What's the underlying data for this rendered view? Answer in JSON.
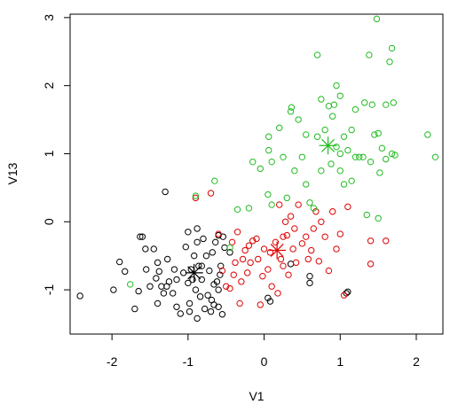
{
  "chart_data": {
    "type": "scatter",
    "title": "",
    "xlabel": "V1",
    "ylabel": "V13",
    "xlim": [
      -2.55,
      2.35
    ],
    "ylim": [
      -1.65,
      3.05
    ],
    "x_ticks": [
      -2,
      -1,
      0,
      1,
      2
    ],
    "y_ticks": [
      -1,
      0,
      1,
      2,
      3
    ],
    "x_tick_labels": [
      "-2",
      "-1",
      "0",
      "1",
      "2"
    ],
    "y_tick_labels": [
      "-1",
      "0",
      "1",
      "2",
      "3"
    ],
    "grid": false,
    "legend": "none",
    "marker": "open-circle",
    "series": [
      {
        "color": "#000000",
        "points": [
          [
            -2.42,
            -1.09
          ],
          [
            -1.98,
            -1.0
          ],
          [
            -1.9,
            -0.59
          ],
          [
            -1.83,
            -0.73
          ],
          [
            -1.7,
            -1.28
          ],
          [
            -1.65,
            -1.02
          ],
          [
            -1.63,
            -0.22
          ],
          [
            -1.6,
            -0.22
          ],
          [
            -1.56,
            -0.4
          ],
          [
            -1.55,
            -0.7
          ],
          [
            -1.5,
            -0.95
          ],
          [
            -1.45,
            -0.4
          ],
          [
            -1.42,
            -0.83
          ],
          [
            -1.4,
            -1.2
          ],
          [
            -1.4,
            -0.6
          ],
          [
            -1.38,
            -0.73
          ],
          [
            -1.35,
            -0.95
          ],
          [
            -1.32,
            -1.05
          ],
          [
            -1.27,
            -0.55
          ],
          [
            -1.25,
            -0.88
          ],
          [
            -1.2,
            -1.05
          ],
          [
            -1.18,
            -0.7
          ],
          [
            -1.15,
            -1.25
          ],
          [
            -1.1,
            -1.35
          ],
          [
            -1.06,
            -0.75
          ],
          [
            -1.03,
            -0.37
          ],
          [
            -1.0,
            -0.9
          ],
          [
            -0.98,
            -1.2
          ],
          [
            -0.96,
            -0.7
          ],
          [
            -0.94,
            -0.85
          ],
          [
            -0.92,
            -0.5
          ],
          [
            -0.9,
            -1.0
          ],
          [
            -0.88,
            -1.42
          ],
          [
            -0.86,
            -0.65
          ],
          [
            -0.84,
            -1.1
          ],
          [
            -0.82,
            -0.85
          ],
          [
            -0.8,
            -0.25
          ],
          [
            -0.78,
            -1.28
          ],
          [
            -0.76,
            -0.5
          ],
          [
            -0.74,
            -1.08
          ],
          [
            -0.72,
            -0.72
          ],
          [
            -0.7,
            -1.32
          ],
          [
            -0.69,
            -1.15
          ],
          [
            -0.68,
            -0.45
          ],
          [
            -0.66,
            -1.22
          ],
          [
            -0.64,
            -0.3
          ],
          [
            -0.62,
            -0.88
          ],
          [
            -0.6,
            -1.0
          ],
          [
            -0.58,
            -0.78
          ],
          [
            -0.57,
            -0.65
          ],
          [
            -0.54,
            -0.22
          ],
          [
            -0.52,
            -0.38
          ],
          [
            -0.55,
            -1.36
          ],
          [
            -1.3,
            0.44
          ],
          [
            -0.88,
            -0.1
          ],
          [
            -0.6,
            -0.2
          ],
          [
            -0.45,
            -0.45
          ],
          [
            -0.6,
            -1.25
          ],
          [
            -0.88,
            -0.3
          ],
          [
            -1.0,
            -0.15
          ],
          [
            -0.82,
            -0.65
          ],
          [
            -1.28,
            -0.95
          ],
          [
            -0.98,
            -1.32
          ],
          [
            -1.15,
            -0.85
          ],
          [
            -0.66,
            -0.92
          ],
          [
            0.05,
            -1.12
          ],
          [
            0.08,
            -1.17
          ],
          [
            0.6,
            -0.9
          ],
          [
            0.6,
            -0.8
          ],
          [
            1.08,
            -1.05
          ],
          [
            1.1,
            -1.03
          ],
          [
            0.35,
            -0.62
          ]
        ]
      },
      {
        "color": "#DF0000",
        "points": [
          [
            -0.9,
            0.35
          ],
          [
            -0.7,
            0.42
          ],
          [
            -0.6,
            -0.18
          ],
          [
            -0.55,
            -0.72
          ],
          [
            -0.5,
            -0.95
          ],
          [
            -0.45,
            -0.98
          ],
          [
            -0.42,
            -0.3
          ],
          [
            -0.4,
            -0.78
          ],
          [
            -0.38,
            -0.6
          ],
          [
            -0.35,
            -0.15
          ],
          [
            -0.32,
            -1.2
          ],
          [
            -0.3,
            -0.88
          ],
          [
            -0.28,
            -0.55
          ],
          [
            -0.25,
            -0.42
          ],
          [
            -0.22,
            -0.75
          ],
          [
            -0.2,
            -0.35
          ],
          [
            -0.18,
            -0.6
          ],
          [
            -0.15,
            -0.28
          ],
          [
            -0.1,
            -0.25
          ],
          [
            -0.08,
            -0.55
          ],
          [
            -0.05,
            -1.22
          ],
          [
            -0.02,
            -0.8
          ],
          [
            0.0,
            -0.4
          ],
          [
            0.05,
            -0.7
          ],
          [
            0.1,
            -0.95
          ],
          [
            0.15,
            -0.3
          ],
          [
            0.18,
            -1.05
          ],
          [
            0.2,
            0.25
          ],
          [
            0.22,
            -0.55
          ],
          [
            0.25,
            -0.65
          ],
          [
            0.28,
            0.0
          ],
          [
            0.3,
            -0.2
          ],
          [
            0.32,
            -0.78
          ],
          [
            0.35,
            0.08
          ],
          [
            0.38,
            -0.4
          ],
          [
            0.4,
            -0.1
          ],
          [
            0.42,
            -0.6
          ],
          [
            0.45,
            0.25
          ],
          [
            0.5,
            -0.32
          ],
          [
            0.55,
            -0.22
          ],
          [
            0.58,
            -0.55
          ],
          [
            0.62,
            -0.42
          ],
          [
            0.65,
            -0.1
          ],
          [
            0.68,
            0.15
          ],
          [
            0.72,
            -0.58
          ],
          [
            0.75,
            0.0
          ],
          [
            0.8,
            -0.22
          ],
          [
            0.85,
            -0.72
          ],
          [
            0.9,
            0.15
          ],
          [
            0.95,
            -0.4
          ],
          [
            1.0,
            -0.18
          ],
          [
            1.05,
            -1.08
          ],
          [
            1.4,
            -0.28
          ],
          [
            1.6,
            -0.28
          ],
          [
            1.4,
            -0.62
          ],
          [
            1.1,
            0.22
          ],
          [
            0.25,
            -0.22
          ],
          [
            0.08,
            -0.45
          ]
        ]
      },
      {
        "color": "#22BB22",
        "points": [
          [
            -1.76,
            -0.92
          ],
          [
            -0.9,
            0.38
          ],
          [
            -0.65,
            0.6
          ],
          [
            -0.45,
            -0.38
          ],
          [
            -0.35,
            0.18
          ],
          [
            -0.2,
            0.2
          ],
          [
            -0.15,
            0.88
          ],
          [
            -0.05,
            0.78
          ],
          [
            0.05,
            0.4
          ],
          [
            0.06,
            1.05
          ],
          [
            0.06,
            1.25
          ],
          [
            0.1,
            0.88
          ],
          [
            0.1,
            0.25
          ],
          [
            0.2,
            1.38
          ],
          [
            0.25,
            0.95
          ],
          [
            0.3,
            0.35
          ],
          [
            0.35,
            1.62
          ],
          [
            0.36,
            1.68
          ],
          [
            0.4,
            0.75
          ],
          [
            0.45,
            1.5
          ],
          [
            0.5,
            0.95
          ],
          [
            0.55,
            1.28
          ],
          [
            0.55,
            0.55
          ],
          [
            0.6,
            0.28
          ],
          [
            0.65,
            0.2
          ],
          [
            0.7,
            2.45
          ],
          [
            0.75,
            1.8
          ],
          [
            0.75,
            0.75
          ],
          [
            0.8,
            1.35
          ],
          [
            0.85,
            1.7
          ],
          [
            0.88,
            0.85
          ],
          [
            0.9,
            1.55
          ],
          [
            0.92,
            1.72
          ],
          [
            0.95,
            2.0
          ],
          [
            0.95,
            1.1
          ],
          [
            1.0,
            0.75
          ],
          [
            1.0,
            1.85
          ],
          [
            1.05,
            1.25
          ],
          [
            1.05,
            0.55
          ],
          [
            1.1,
            1.05
          ],
          [
            1.15,
            0.6
          ],
          [
            1.15,
            1.35
          ],
          [
            1.2,
            1.65
          ],
          [
            1.25,
            0.95
          ],
          [
            1.3,
            0.95
          ],
          [
            1.32,
            1.75
          ],
          [
            1.35,
            0.1
          ],
          [
            1.38,
            2.45
          ],
          [
            1.4,
            0.88
          ],
          [
            1.42,
            1.72
          ],
          [
            1.45,
            1.28
          ],
          [
            1.48,
            2.98
          ],
          [
            1.5,
            1.3
          ],
          [
            1.5,
            0.05
          ],
          [
            1.52,
            0.72
          ],
          [
            1.55,
            1.08
          ],
          [
            1.6,
            0.92
          ],
          [
            1.6,
            1.72
          ],
          [
            1.65,
            2.35
          ],
          [
            1.68,
            2.55
          ],
          [
            1.7,
            1.75
          ],
          [
            1.72,
            0.98
          ],
          [
            1.68,
            1.0
          ],
          [
            2.15,
            1.28
          ],
          [
            2.25,
            0.95
          ],
          [
            1.2,
            0.95
          ],
          [
            0.7,
            1.25
          ],
          [
            1.0,
            1.0
          ]
        ]
      }
    ],
    "centers": [
      {
        "color": "#000000",
        "x": -0.92,
        "y": -0.75
      },
      {
        "color": "#DF0000",
        "x": 0.17,
        "y": -0.42
      },
      {
        "color": "#22BB22",
        "x": 0.84,
        "y": 1.12
      }
    ]
  }
}
